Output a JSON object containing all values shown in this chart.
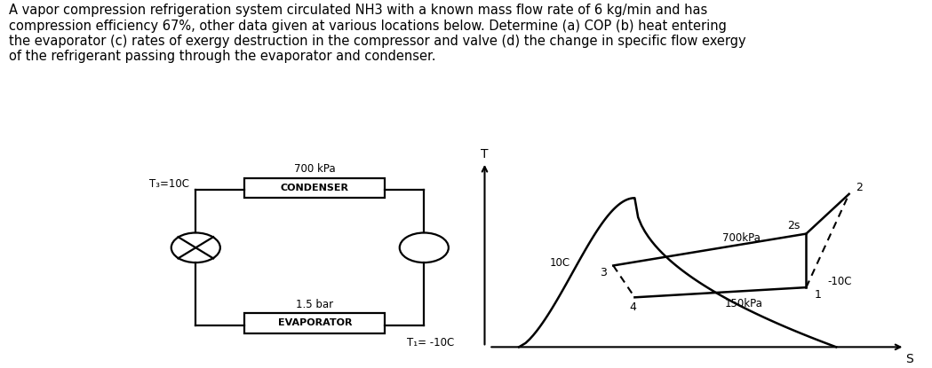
{
  "title_text": "A vapor compression refrigeration system circulated NH3 with a known mass flow rate of 6 kg/min and has\ncompression efficiency 67%, other data given at various locations below. Determine (a) COP (b) heat entering\nthe evaporator (c) rates of exergy destruction in the compressor and valve (d) the change in specific flow exergy\nof the refrigerant passing through the evaporator and condenser.",
  "title_fontsize": 10.5,
  "bg_color": "#ffffff",
  "schematic": {
    "condenser_label": "CONDENSER",
    "evaporator_label": "EVAPORATOR",
    "pressure_top": "700 kPa",
    "pressure_bottom": "1.5 bar",
    "T3_label": "T₃=10C",
    "T1_label": "T₁= -10C"
  },
  "ts_diagram": {
    "xlabel": "S",
    "ylabel": "T",
    "label_700": "700kPa",
    "label_150": "150kPa",
    "label_10C": "10C",
    "label_n10C": "-10C",
    "label_2s": "2s",
    "label_2": "2",
    "label_1": "1",
    "label_3": "3",
    "label_4": "4"
  }
}
